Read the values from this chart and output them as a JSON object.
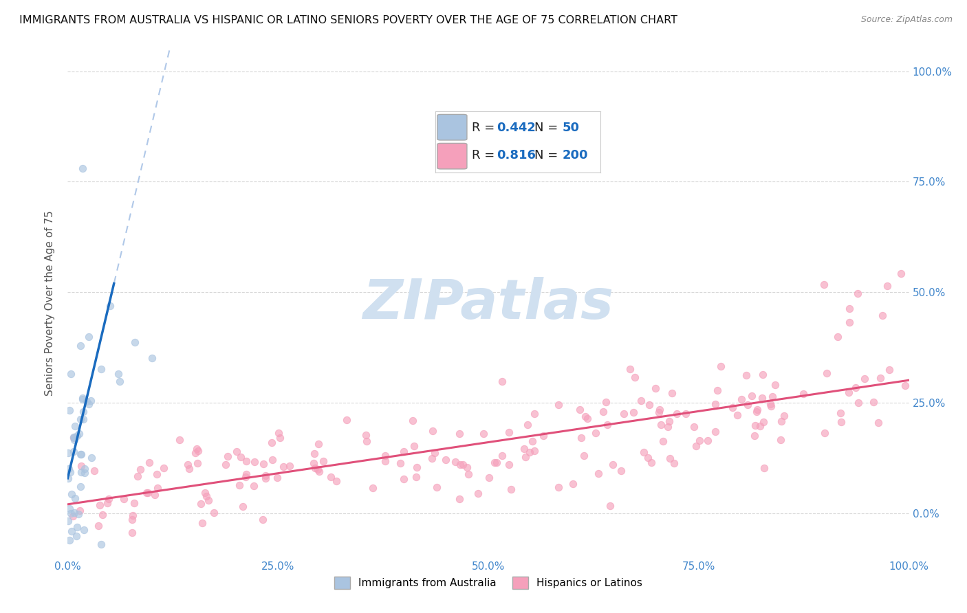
{
  "title": "IMMIGRANTS FROM AUSTRALIA VS HISPANIC OR LATINO SENIORS POVERTY OVER THE AGE OF 75 CORRELATION CHART",
  "source": "Source: ZipAtlas.com",
  "ylabel": "Seniors Poverty Over the Age of 75",
  "R_blue": 0.442,
  "N_blue": 50,
  "R_pink": 0.816,
  "N_pink": 200,
  "blue_scatter_color": "#aac4e0",
  "blue_line_color": "#1a6bbf",
  "pink_scatter_color": "#f5a0bb",
  "pink_line_color": "#e0507a",
  "dashed_line_color": "#b0c8e8",
  "watermark_color": "#d0e0f0",
  "legend_label_blue": "Immigrants from Australia",
  "legend_label_pink": "Hispanics or Latinos",
  "x_ticks": [
    0.0,
    0.25,
    0.5,
    0.75,
    1.0
  ],
  "y_ticks": [
    0.0,
    0.25,
    0.5,
    0.75,
    1.0
  ],
  "xmin": 0.0,
  "xmax": 1.0,
  "ymin": -0.1,
  "ymax": 1.05,
  "background_color": "#ffffff",
  "grid_color": "#d8d8d8",
  "title_color": "#111111",
  "title_fontsize": 11.5,
  "axis_label_color": "#555555",
  "tick_label_color": "#4488cc",
  "legend_R_color": "#1a6bbf",
  "legend_N_color": "#1a6bbf",
  "legend_text_color": "#222222"
}
